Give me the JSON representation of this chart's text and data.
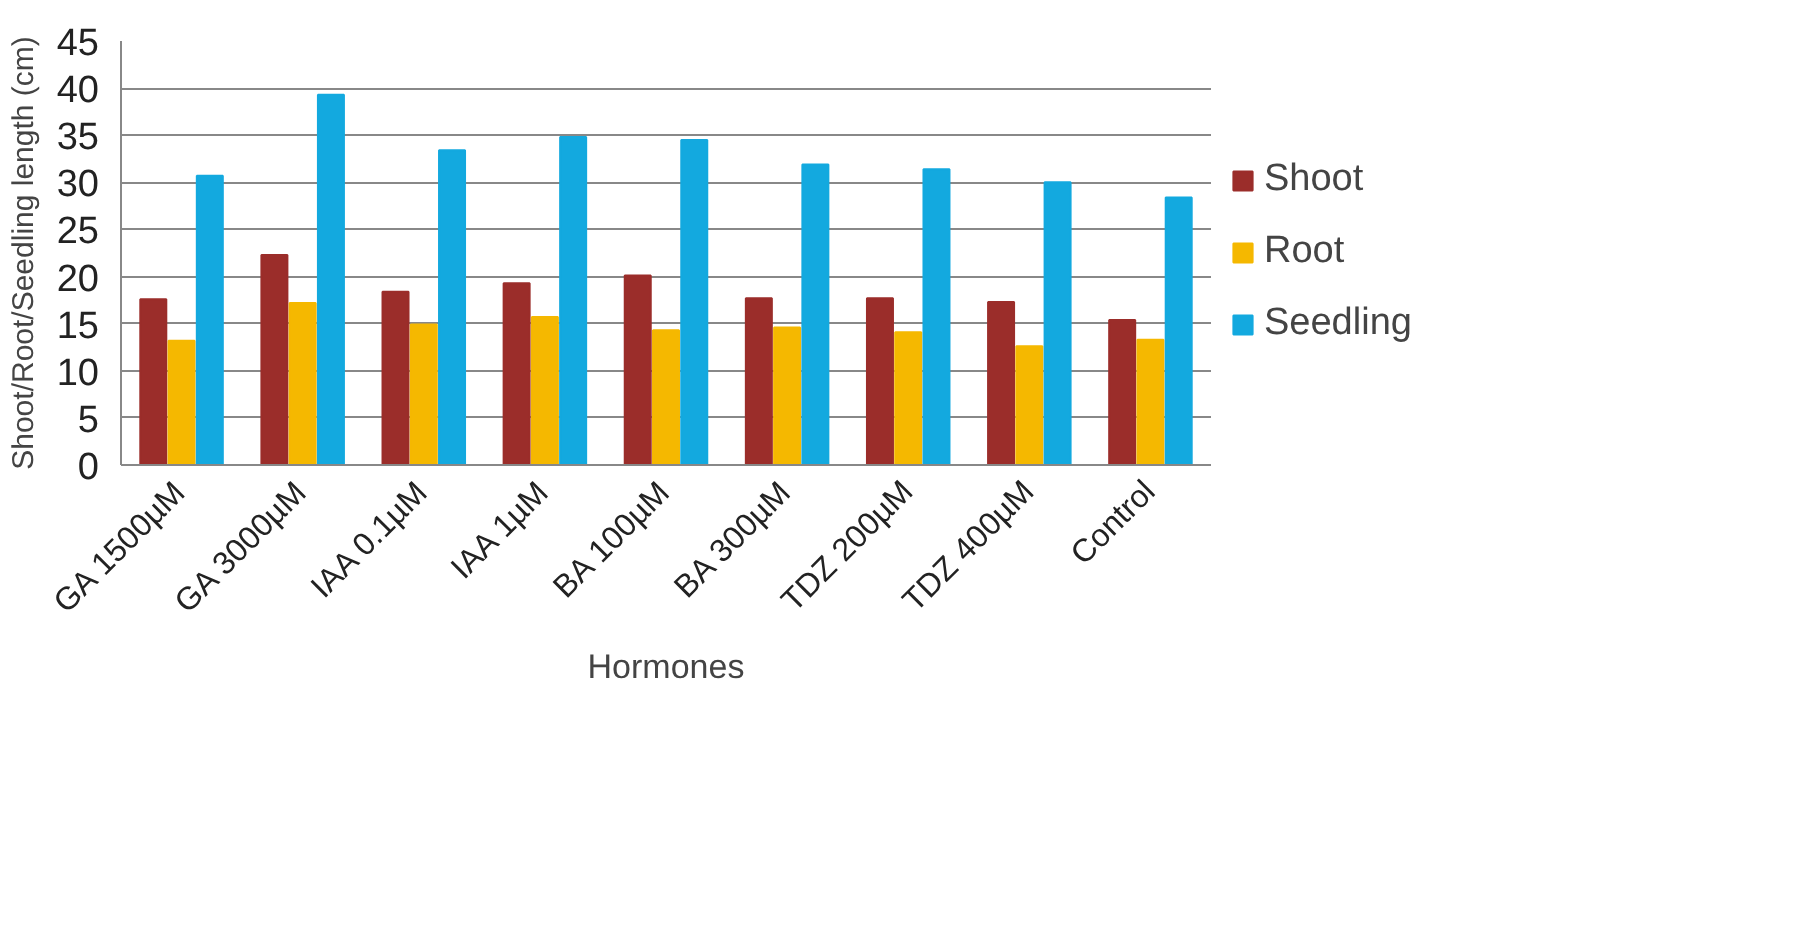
{
  "chart_data": {
    "type": "bar",
    "xlabel": "Hormones",
    "ylabel": "Shoot/Root/Seedling length (cm)",
    "categories": [
      "GA 1500µM",
      "GA 3000µM",
      "IAA 0.1µM",
      "IAA 1µM",
      "BA 100µM",
      "BA 300µM",
      "TDZ 200µM",
      "TDZ 400µM",
      "Control"
    ],
    "series": [
      {
        "name": "Shoot",
        "color": "#9b2d2a",
        "values": [
          17.6,
          22.3,
          18.4,
          19.3,
          20.1,
          17.7,
          17.7,
          17.3,
          15.4
        ]
      },
      {
        "name": "Root",
        "color": "#f5b800",
        "values": [
          13.2,
          17.2,
          14.9,
          15.7,
          14.3,
          14.6,
          14.1,
          12.6,
          13.3
        ]
      },
      {
        "name": "Seedling",
        "color": "#13a9df",
        "values": [
          30.7,
          39.3,
          33.4,
          34.8,
          34.5,
          31.9,
          31.4,
          30.0,
          28.4
        ]
      }
    ],
    "ylim": [
      0,
      45
    ],
    "yticks": [
      0,
      5,
      10,
      15,
      20,
      25,
      30,
      35,
      40,
      45
    ],
    "grid": "y",
    "legend": "right"
  }
}
